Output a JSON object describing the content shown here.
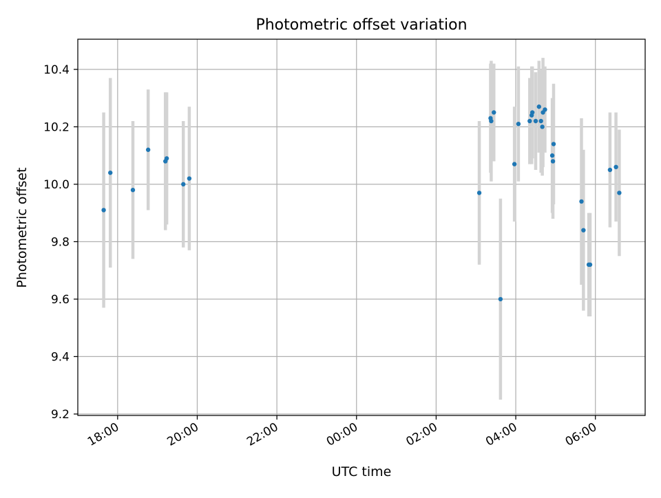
{
  "chart_data": {
    "type": "scatter",
    "title": "Photometric offset variation",
    "xlabel": "UTC time",
    "ylabel": "Photometric offset",
    "x_axis_type": "time",
    "xlim": [
      "17:00",
      "07:15"
    ],
    "ylim": [
      9.195,
      10.505
    ],
    "xticks": [
      "18:00",
      "20:00",
      "22:00",
      "00:00",
      "02:00",
      "04:00",
      "06:00"
    ],
    "yticks": [
      "9.2",
      "9.4",
      "9.6",
      "9.8",
      "10.0",
      "10.2",
      "10.4"
    ],
    "grid": true,
    "series": [
      {
        "marker_color": "#1f77b4",
        "errorbar_color": "#d3d3d3",
        "points": [
          {
            "x": "17:39",
            "y": 9.91,
            "yerr": 0.34
          },
          {
            "x": "17:49",
            "y": 10.04,
            "yerr": 0.33
          },
          {
            "x": "18:23",
            "y": 9.98,
            "yerr": 0.24
          },
          {
            "x": "18:46",
            "y": 10.12,
            "yerr": 0.21
          },
          {
            "x": "19:12",
            "y": 10.08,
            "yerr": 0.24
          },
          {
            "x": "19:14",
            "y": 10.09,
            "yerr": 0.23
          },
          {
            "x": "19:39",
            "y": 10.0,
            "yerr": 0.22
          },
          {
            "x": "19:48",
            "y": 10.02,
            "yerr": 0.25
          },
          {
            "x": "03:05",
            "y": 9.97,
            "yerr": 0.25
          },
          {
            "x": "03:22",
            "y": 10.23,
            "yerr": 0.19
          },
          {
            "x": "03:23",
            "y": 10.22,
            "yerr": 0.21
          },
          {
            "x": "03:27",
            "y": 10.25,
            "yerr": 0.17
          },
          {
            "x": "03:37",
            "y": 9.6,
            "yerr": 0.35
          },
          {
            "x": "03:58",
            "y": 10.07,
            "yerr": 0.2
          },
          {
            "x": "04:04",
            "y": 10.21,
            "yerr": 0.2
          },
          {
            "x": "04:21",
            "y": 10.22,
            "yerr": 0.15
          },
          {
            "x": "04:24",
            "y": 10.24,
            "yerr": 0.17
          },
          {
            "x": "04:25",
            "y": 10.25,
            "yerr": 0.16
          },
          {
            "x": "04:30",
            "y": 10.22,
            "yerr": 0.17
          },
          {
            "x": "04:35",
            "y": 10.27,
            "yerr": 0.16
          },
          {
            "x": "04:38",
            "y": 10.22,
            "yerr": 0.18
          },
          {
            "x": "04:40",
            "y": 10.2,
            "yerr": 0.17
          },
          {
            "x": "04:41",
            "y": 10.25,
            "yerr": 0.19
          },
          {
            "x": "04:44",
            "y": 10.26,
            "yerr": 0.15
          },
          {
            "x": "04:55",
            "y": 10.1,
            "yerr": 0.2
          },
          {
            "x": "04:56",
            "y": 10.08,
            "yerr": 0.2
          },
          {
            "x": "04:57",
            "y": 10.14,
            "yerr": 0.21
          },
          {
            "x": "05:39",
            "y": 9.94,
            "yerr": 0.29
          },
          {
            "x": "05:42",
            "y": 9.84,
            "yerr": 0.28
          },
          {
            "x": "05:50",
            "y": 9.72,
            "yerr": 0.18
          },
          {
            "x": "05:52",
            "y": 9.72,
            "yerr": 0.18
          },
          {
            "x": "06:22",
            "y": 10.05,
            "yerr": 0.2
          },
          {
            "x": "06:31",
            "y": 10.06,
            "yerr": 0.19
          },
          {
            "x": "06:36",
            "y": 9.97,
            "yerr": 0.22
          }
        ]
      }
    ]
  }
}
